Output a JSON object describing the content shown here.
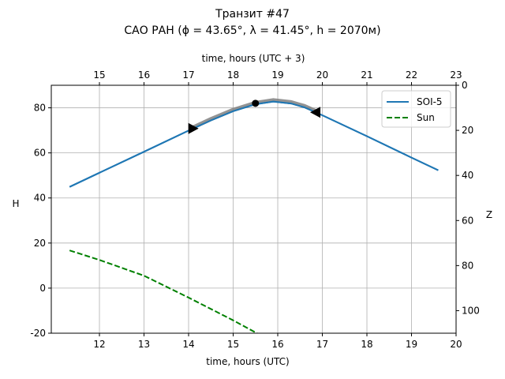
{
  "chart_data": {
    "type": "line",
    "title": "Транзит #47",
    "subtitle": "САО РАН (ϕ = 43.65°, λ = 41.45°, h = 2070м)",
    "xlabel": "time, hours (UTC)",
    "xlabel_top": "time, hours (UTC + 3)",
    "ylabel": "H",
    "ylabel_right": "Z",
    "xlim": [
      10.92,
      20
    ],
    "ylim": [
      -20,
      90
    ],
    "xticks": [
      12,
      13,
      14,
      15,
      16,
      17,
      18,
      19,
      20
    ],
    "xticks_top": [
      15,
      16,
      17,
      18,
      19,
      20,
      21,
      22,
      23
    ],
    "yticks": [
      -20,
      0,
      20,
      40,
      60,
      80
    ],
    "yticks_right": [
      0,
      20,
      40,
      60,
      80,
      100
    ],
    "grid": true,
    "legend_position": "top-right",
    "series": [
      {
        "name": "SOI-5",
        "color": "#1f77b4",
        "style": "solid",
        "x": [
          11.33,
          12,
          13,
          14,
          14.5,
          15,
          15.5,
          15.9,
          16.3,
          16.6,
          17,
          18,
          19,
          19.6
        ],
        "y": [
          44.9,
          51.2,
          60.5,
          69.9,
          74.4,
          78.5,
          81.6,
          82.8,
          81.9,
          80.2,
          76.7,
          67.4,
          57.9,
          52.3
        ]
      },
      {
        "name": "Sun",
        "color": "#008000",
        "style": "dashed",
        "x": [
          11.33,
          12,
          13,
          14,
          15,
          15.55
        ],
        "y": [
          16.7,
          12.5,
          5.5,
          -4.2,
          -14.3,
          -20.2
        ]
      }
    ],
    "highlight": {
      "color": "#808080",
      "x": [
        14.1,
        14.5,
        15,
        15.5,
        15.9,
        16.3,
        16.6,
        16.85
      ],
      "y": [
        71.3,
        75.0,
        79.1,
        82.2,
        83.4,
        82.5,
        80.8,
        78.6
      ]
    },
    "markers": [
      {
        "type": "triangle-right",
        "x": 14.1,
        "y": 70.8
      },
      {
        "type": "dot",
        "x": 15.5,
        "y": 82.0
      },
      {
        "type": "triangle-left",
        "x": 16.85,
        "y": 78.0
      }
    ]
  }
}
